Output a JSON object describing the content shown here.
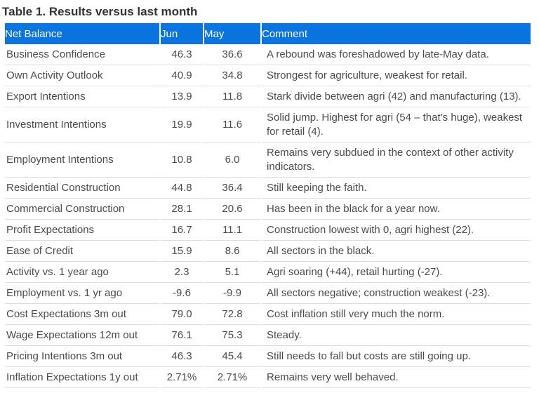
{
  "title": "Table 1. Results versus last month",
  "colors": {
    "header_bg": "#0a74e0",
    "header_text": "#ffffff",
    "title_text": "#333333",
    "body_text": "#4b4b4b",
    "row_divider": "#dddddd",
    "page_bg": "#ffffff"
  },
  "chart_data": {
    "type": "table",
    "title": "Table 1. Results versus last month",
    "columns": [
      "Net Balance",
      "Jun",
      "May",
      "Comment"
    ],
    "rows": [
      [
        "Business Confidence",
        "46.3",
        "36.6",
        "A rebound was foreshadowed by late-May data."
      ],
      [
        "Own Activity Outlook",
        "40.9",
        "34.8",
        "Strongest for agriculture, weakest for retail."
      ],
      [
        "Export Intentions",
        "13.9",
        "11.8",
        "Stark divide between agri (42) and manufacturing (13)."
      ],
      [
        "Investment Intentions",
        "19.9",
        "11.6",
        "Solid jump. Highest for agri (54 – that’s huge), weakest for retail (4)."
      ],
      [
        "Employment Intentions",
        "10.8",
        "6.0",
        "Remains very subdued in the context of other activity indicators."
      ],
      [
        "Residential Construction",
        "44.8",
        "36.4",
        "Still keeping the faith."
      ],
      [
        "Commercial Construction",
        "28.1",
        "20.6",
        "Has been in the black for a year now."
      ],
      [
        "Profit Expectations",
        "16.7",
        "11.1",
        "Construction lowest with 0, agri highest (22)."
      ],
      [
        "Ease of Credit",
        "15.9",
        "8.6",
        "All sectors in the black."
      ],
      [
        "Activity vs. 1 year ago",
        "2.3",
        "5.1",
        "Agri soaring (+44), retail hurting (-27)."
      ],
      [
        "Employment vs. 1 yr ago",
        "-9.6",
        "-9.9",
        "All sectors negative; construction weakest (-23)."
      ],
      [
        "Cost Expectations 3m out",
        "79.0",
        "72.8",
        "Cost inflation still very much the norm."
      ],
      [
        "Wage Expectations 12m out",
        "76.1",
        "75.3",
        "Steady."
      ],
      [
        "Pricing Intentions 3m out",
        "46.3",
        "45.4",
        "Still needs to fall but costs are still going up."
      ],
      [
        "Inflation Expectations 1y out",
        "2.71%",
        "2.71%",
        "Remains very well behaved."
      ]
    ]
  }
}
